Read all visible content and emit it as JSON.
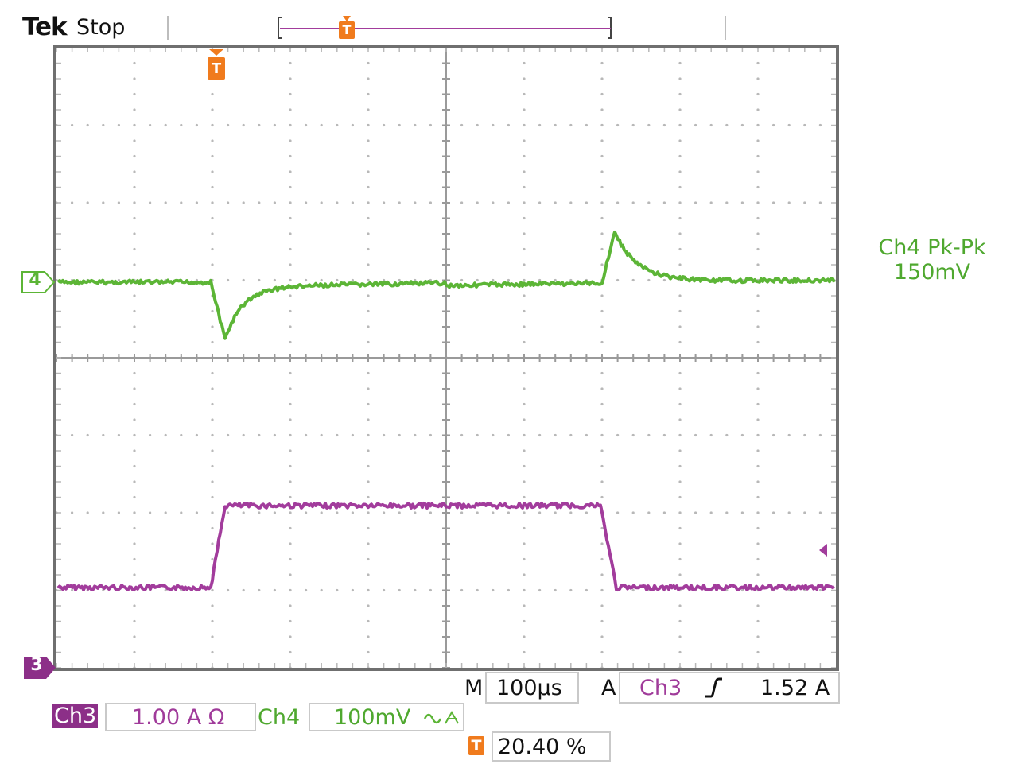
{
  "header": {
    "brand": "Tek",
    "status": "Stop"
  },
  "scope": {
    "trigger_position_marker": "T",
    "channel_marker_4": "4",
    "channel_marker_3": "3",
    "measurement": {
      "label": "Ch4 Pk-Pk",
      "value": "150mV"
    },
    "colors": {
      "ch4": "#5cb536",
      "ch3": "#a23c9c",
      "trigger": "#f07b1d",
      "grid": "#b8b8b8"
    }
  },
  "status_bar": {
    "timebase_label": "M",
    "timebase_value": "100µs",
    "trigger_label": "A",
    "trigger_source": "Ch3",
    "trigger_slope_icon": "rising-edge-icon",
    "trigger_level": "1.52 A",
    "ch3_label": "Ch3",
    "ch3_scale": "1.00 A Ω",
    "ch4_label": "Ch4",
    "ch4_scale": "100mV",
    "ch4_coupling_icon": "ac-coupling-icon",
    "trigger_pos_icon": "T",
    "trigger_pos_value": "20.40 %"
  }
}
